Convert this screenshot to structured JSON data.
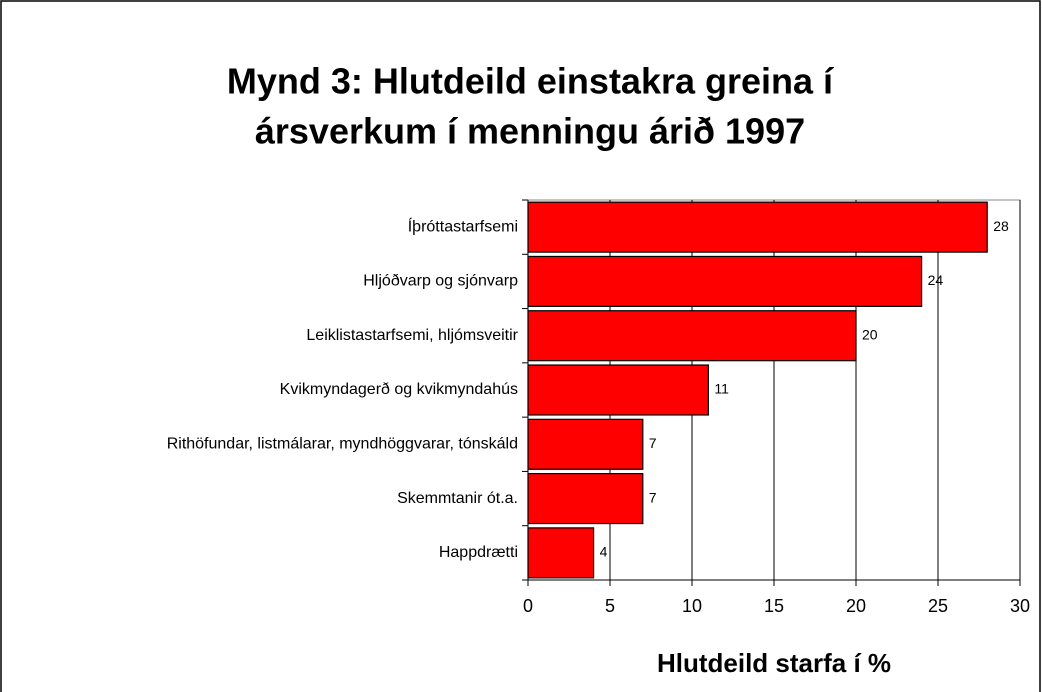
{
  "chart_data": {
    "type": "bar",
    "orientation": "horizontal",
    "title": [
      "Mynd 3: Hlutdeild einstakra greina í",
      "ársverkum í menningu árið 1997"
    ],
    "x_label": "Hlutdeild starfa í %",
    "categories": [
      "Íþróttastarfsemi",
      "Hljóðvarp og sjónvarp",
      "Leiklistastarfsemi, hljómsveitir",
      "Kvikmyndagerð og kvikmyndahús",
      "Rithöfundar, listmálarar, myndhöggvarar, tónskáld",
      "Skemmtanir ót.a.",
      "Happdrætti"
    ],
    "values": [
      28,
      24,
      20,
      11,
      7,
      7,
      4
    ],
    "color": "#ff0000",
    "xlim": [
      0,
      30
    ],
    "xticks": [
      0,
      5,
      10,
      15,
      20,
      25,
      30
    ],
    "grid": true
  }
}
